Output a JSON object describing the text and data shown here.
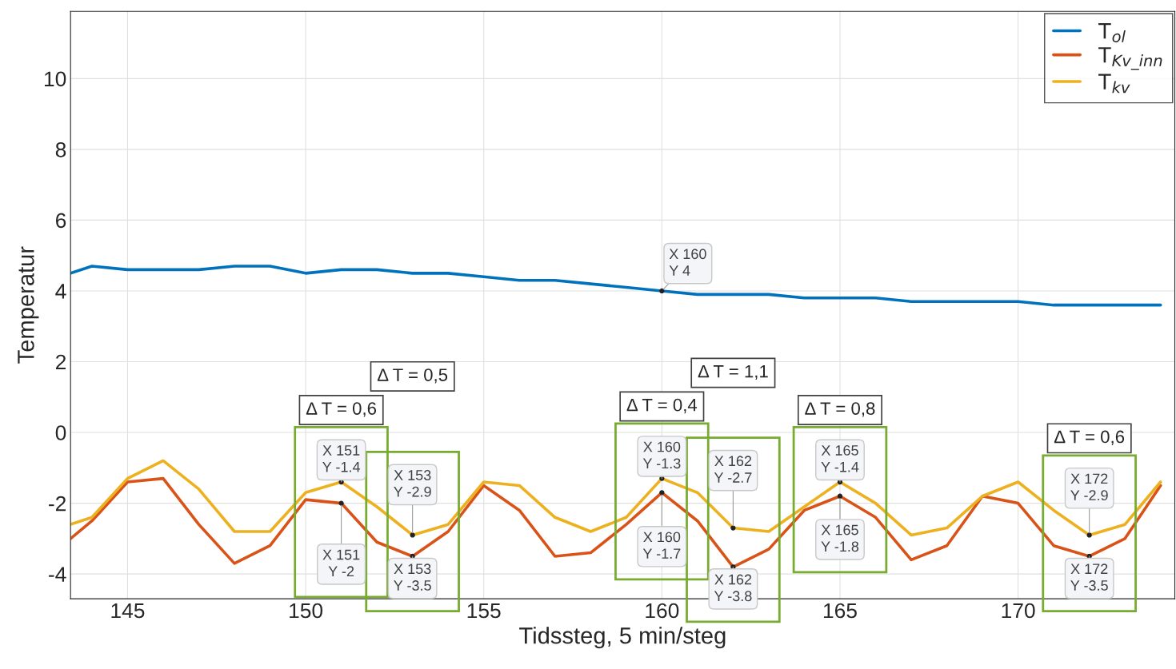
{
  "chart_data": {
    "type": "line",
    "xlabel": "Tidssteg, 5 min/steg",
    "ylabel": "Temperatur",
    "xlim": [
      143.4,
      174.4
    ],
    "ylim": [
      -4.7,
      11.9
    ],
    "xticks": [
      145,
      150,
      155,
      160,
      165,
      170
    ],
    "yticks": [
      -4,
      -2,
      0,
      2,
      4,
      6,
      8,
      10
    ],
    "grid": true,
    "legend": "top right",
    "marker": "none",
    "line_style": "solid",
    "x": [
      143.4,
      144,
      145,
      146,
      147,
      148,
      149,
      150,
      151,
      152,
      153,
      154,
      155,
      156,
      157,
      158,
      159,
      160,
      161,
      162,
      163,
      164,
      165,
      166,
      167,
      168,
      169,
      170,
      171,
      172,
      173,
      174
    ],
    "series": [
      {
        "name": "T$_{ol}$",
        "color": "#0072bd",
        "values": [
          4.5,
          4.7,
          4.6,
          4.6,
          4.6,
          4.7,
          4.7,
          4.5,
          4.6,
          4.6,
          4.5,
          4.5,
          4.4,
          4.3,
          4.3,
          4.2,
          4.1,
          4.0,
          3.9,
          3.9,
          3.9,
          3.8,
          3.8,
          3.8,
          3.7,
          3.7,
          3.7,
          3.7,
          3.6,
          3.6,
          3.6,
          3.6
        ]
      },
      {
        "name": "T$_{Kv_inn}$",
        "color": "#d95319",
        "values": [
          -3.0,
          -2.5,
          -1.4,
          -1.3,
          -2.6,
          -3.7,
          -3.2,
          -1.9,
          -2.0,
          -3.1,
          -3.5,
          -2.8,
          -1.5,
          -2.2,
          -3.5,
          -3.4,
          -2.6,
          -1.7,
          -2.5,
          -3.8,
          -3.3,
          -2.2,
          -1.8,
          -2.4,
          -3.6,
          -3.2,
          -1.8,
          -2.0,
          -3.2,
          -3.5,
          -3.0,
          -1.5
        ]
      },
      {
        "name": "T$_{kv}$",
        "color": "#edb120",
        "values": [
          -2.6,
          -2.4,
          -1.3,
          -0.8,
          -1.6,
          -2.8,
          -2.8,
          -1.7,
          -1.4,
          -2.1,
          -2.9,
          -2.6,
          -1.4,
          -1.5,
          -2.4,
          -2.8,
          -2.4,
          -1.3,
          -1.7,
          -2.7,
          -2.8,
          -2.1,
          -1.4,
          -2.0,
          -2.9,
          -2.7,
          -1.8,
          -1.4,
          -2.2,
          -2.9,
          -2.6,
          -1.4
        ]
      }
    ],
    "annotations": [
      {
        "text": "X 160\nY 4",
        "x": 160,
        "y": 4
      },
      {
        "text": "X 151\nY -1.4",
        "x": 151,
        "y": -1.4
      },
      {
        "text": "X 151\nY -2",
        "x": 151,
        "y": -2
      },
      {
        "text": "X 153\nY -2.9",
        "x": 153,
        "y": -2.9
      },
      {
        "text": "X 153\nY -3.5",
        "x": 153,
        "y": -3.5
      },
      {
        "text": "X 160\nY -1.3",
        "x": 160,
        "y": -1.3
      },
      {
        "text": "X 160\nY -1.7",
        "x": 160,
        "y": -1.7
      },
      {
        "text": "X 162\nY -2.7",
        "x": 162,
        "y": -2.7
      },
      {
        "text": "X 162\nY -3.8",
        "x": 162,
        "y": -3.8
      },
      {
        "text": "X 165\nY -1.4",
        "x": 165,
        "y": -1.4
      },
      {
        "text": "X 165\nY -1.8",
        "x": 165,
        "y": -1.8
      },
      {
        "text": "X 172\nY -2.9",
        "x": 172,
        "y": -2.9
      },
      {
        "text": "X 172\nY -3.5",
        "x": 172,
        "y": -3.5
      },
      "Δ T = 0,6",
      "Δ T = 0,5",
      "Δ T = 0,4",
      "Δ T = 1,1",
      "Δ T = 0,8",
      "Δ T = 0,6"
    ]
  }
}
